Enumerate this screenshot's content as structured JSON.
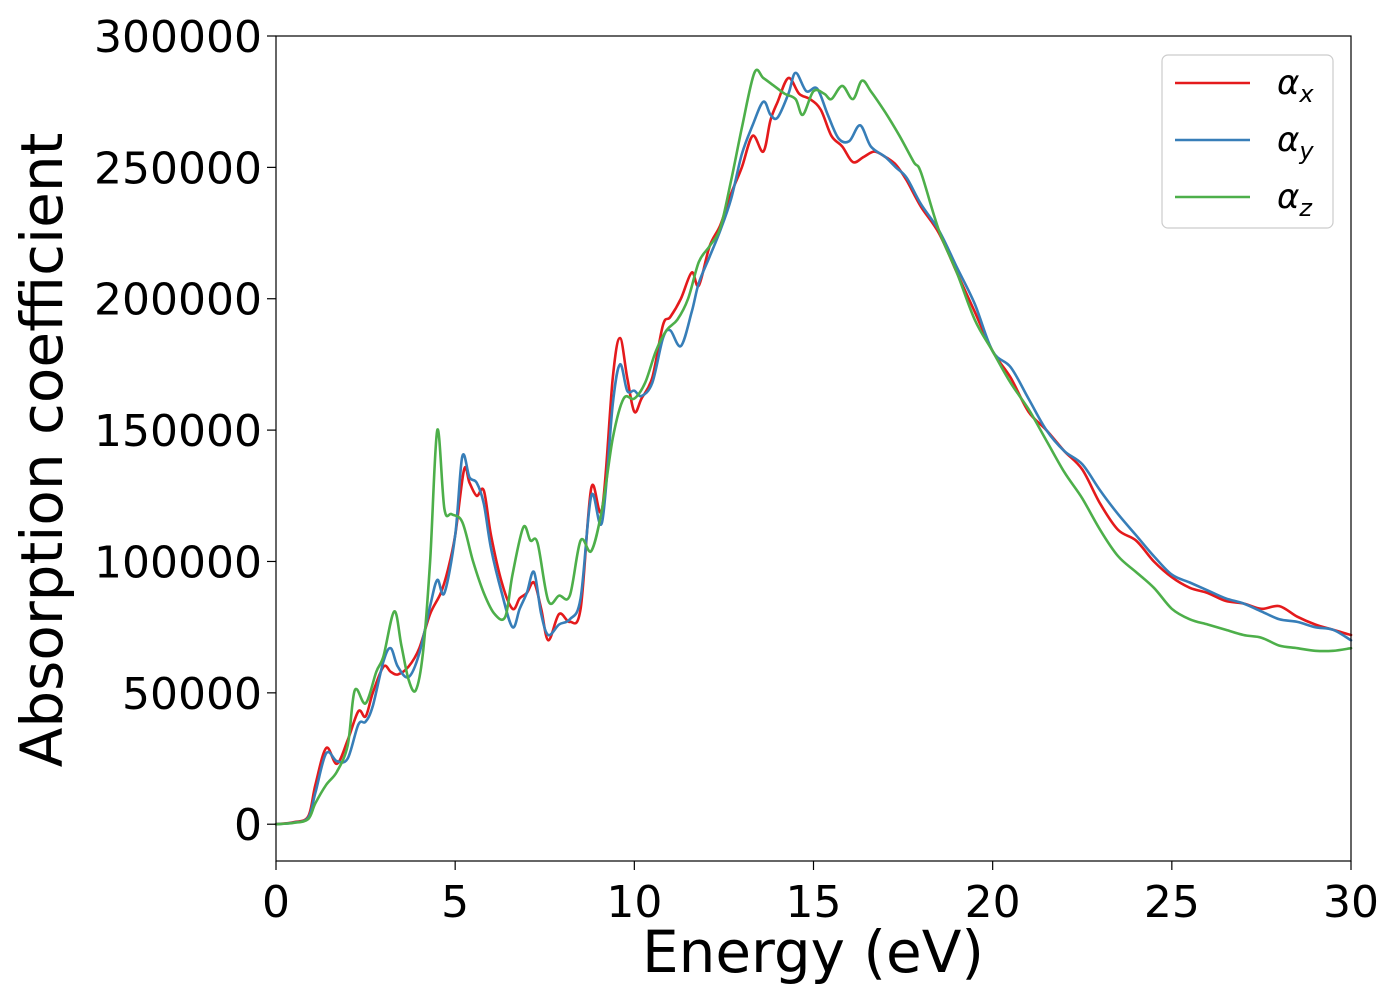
{
  "chart_data": {
    "type": "line",
    "xlabel": "Energy (eV)",
    "ylabel": "Absorption coefficient",
    "xlim": [
      0,
      30
    ],
    "ylim": [
      -14000,
      300000
    ],
    "xticks": [
      0,
      5,
      10,
      15,
      20,
      25,
      30
    ],
    "xtick_labels": [
      "0",
      "5",
      "10",
      "15",
      "20",
      "25",
      "30"
    ],
    "yticks": [
      0,
      50000,
      100000,
      150000,
      200000,
      250000,
      300000
    ],
    "ytick_labels": [
      "0",
      "50000",
      "100000",
      "150000",
      "200000",
      "250000",
      "300000"
    ],
    "grid": false,
    "legend_position": "top-right",
    "series": [
      {
        "name": "α",
        "subscript": "x",
        "color": "#e41a1c",
        "x": [
          0,
          0.5,
          0.9,
          1.1,
          1.4,
          1.7,
          2.0,
          2.3,
          2.5,
          2.7,
          3.0,
          3.2,
          3.4,
          3.7,
          4.0,
          4.3,
          4.6,
          4.8,
          5.0,
          5.25,
          5.4,
          5.6,
          5.8,
          6.0,
          6.3,
          6.6,
          6.8,
          7.0,
          7.2,
          7.4,
          7.6,
          7.9,
          8.2,
          8.5,
          8.8,
          9.1,
          9.4,
          9.6,
          9.8,
          10.0,
          10.2,
          10.5,
          10.8,
          11.0,
          11.3,
          11.6,
          11.8,
          12.1,
          12.4,
          12.7,
          13.0,
          13.3,
          13.6,
          13.8,
          14.0,
          14.3,
          14.6,
          14.9,
          15.2,
          15.5,
          15.8,
          16.1,
          16.4,
          16.7,
          17.0,
          17.3,
          17.6,
          18.0,
          18.5,
          19.0,
          19.5,
          20.0,
          20.5,
          21.0,
          21.5,
          22.0,
          22.5,
          23.0,
          23.5,
          24.0,
          24.5,
          25.0,
          25.5,
          26.0,
          26.5,
          27.0,
          27.5,
          28.0,
          28.5,
          29.0,
          29.5,
          30.0
        ],
        "y": [
          0,
          800,
          3000,
          15000,
          29000,
          23000,
          32000,
          43000,
          41000,
          50000,
          60000,
          58000,
          57000,
          60000,
          67000,
          80000,
          88000,
          97000,
          110000,
          135000,
          130000,
          125000,
          127000,
          110000,
          92000,
          82000,
          86000,
          88000,
          92000,
          82000,
          70000,
          80000,
          77000,
          82000,
          128000,
          120000,
          170000,
          185000,
          170000,
          157000,
          162000,
          170000,
          190000,
          193000,
          200000,
          210000,
          205000,
          220000,
          228000,
          240000,
          250000,
          262000,
          256000,
          268000,
          275000,
          284000,
          278000,
          276000,
          272000,
          262000,
          258000,
          252000,
          254000,
          256000,
          254000,
          251000,
          245000,
          235000,
          225000,
          210000,
          195000,
          180000,
          170000,
          157000,
          150000,
          142000,
          135000,
          122000,
          112000,
          108000,
          100000,
          94000,
          90000,
          88000,
          85000,
          84000,
          82000,
          83000,
          79000,
          76000,
          74000,
          72000
        ]
      },
      {
        "name": "α",
        "subscript": "y",
        "color": "#377eb8",
        "x": [
          0,
          0.5,
          0.9,
          1.1,
          1.4,
          1.7,
          2.0,
          2.3,
          2.5,
          2.7,
          3.0,
          3.2,
          3.4,
          3.7,
          4.0,
          4.3,
          4.5,
          4.7,
          5.0,
          5.2,
          5.4,
          5.6,
          5.8,
          6.0,
          6.3,
          6.6,
          6.8,
          7.0,
          7.2,
          7.4,
          7.6,
          7.9,
          8.2,
          8.5,
          8.8,
          9.1,
          9.4,
          9.6,
          9.8,
          10.0,
          10.2,
          10.5,
          10.8,
          11.0,
          11.3,
          11.6,
          11.8,
          12.1,
          12.4,
          12.7,
          13.0,
          13.3,
          13.6,
          13.8,
          14.0,
          14.3,
          14.5,
          14.8,
          15.1,
          15.4,
          15.7,
          16.0,
          16.3,
          16.6,
          17.0,
          17.3,
          17.6,
          18.0,
          18.5,
          19.0,
          19.5,
          20.0,
          20.5,
          21.0,
          21.5,
          22.0,
          22.5,
          23.0,
          23.5,
          24.0,
          24.5,
          25.0,
          25.5,
          26.0,
          26.5,
          27.0,
          27.5,
          28.0,
          28.5,
          29.0,
          29.5,
          30.0
        ],
        "y": [
          0,
          600,
          2500,
          12000,
          27000,
          24000,
          25000,
          38000,
          39000,
          45000,
          62000,
          67000,
          60000,
          56000,
          65000,
          83000,
          93000,
          88000,
          110000,
          140000,
          132000,
          130000,
          122000,
          105000,
          88000,
          75000,
          82000,
          88000,
          96000,
          80000,
          72000,
          76000,
          78000,
          86000,
          125000,
          115000,
          160000,
          175000,
          165000,
          165000,
          163000,
          168000,
          185000,
          188000,
          182000,
          195000,
          206000,
          216000,
          226000,
          238000,
          255000,
          266000,
          275000,
          270000,
          269000,
          278000,
          286000,
          279000,
          280000,
          270000,
          261000,
          260000,
          266000,
          258000,
          254000,
          250000,
          246000,
          236000,
          226000,
          212000,
          198000,
          180000,
          174000,
          162000,
          150000,
          142000,
          137000,
          127000,
          118000,
          110000,
          102000,
          95000,
          92000,
          89000,
          86000,
          84000,
          81000,
          78000,
          77000,
          75000,
          74000,
          70000
        ]
      },
      {
        "name": "α",
        "subscript": "z",
        "color": "#4daf4a",
        "x": [
          0,
          0.5,
          0.9,
          1.1,
          1.4,
          1.7,
          2.0,
          2.2,
          2.5,
          2.8,
          3.0,
          3.3,
          3.5,
          3.7,
          3.9,
          4.1,
          4.3,
          4.5,
          4.7,
          4.9,
          5.2,
          5.5,
          5.8,
          6.1,
          6.4,
          6.6,
          6.9,
          7.1,
          7.3,
          7.6,
          7.9,
          8.2,
          8.5,
          8.8,
          9.1,
          9.4,
          9.7,
          10.0,
          10.3,
          10.6,
          10.9,
          11.2,
          11.5,
          11.8,
          12.1,
          12.4,
          12.7,
          13.0,
          13.35,
          13.6,
          13.9,
          14.2,
          14.5,
          14.7,
          15.0,
          15.3,
          15.5,
          15.8,
          16.1,
          16.35,
          16.6,
          17.0,
          17.4,
          17.8,
          18.0,
          18.5,
          19.0,
          19.5,
          20.0,
          20.5,
          21.0,
          21.5,
          22.0,
          22.5,
          23.0,
          23.5,
          24.0,
          24.5,
          25.0,
          25.5,
          26.0,
          26.5,
          27.0,
          27.5,
          28.0,
          28.5,
          29.0,
          29.5,
          30.0
        ],
        "y": [
          0,
          500,
          2000,
          8000,
          15000,
          20000,
          30000,
          51000,
          46000,
          58000,
          64000,
          81000,
          68000,
          55000,
          51000,
          65000,
          100000,
          150000,
          120000,
          118000,
          115000,
          100000,
          88000,
          80000,
          79000,
          95000,
          113000,
          108000,
          107000,
          85000,
          87000,
          87000,
          108000,
          104000,
          120000,
          147000,
          162000,
          162000,
          168000,
          180000,
          188000,
          192000,
          200000,
          214000,
          220000,
          227000,
          245000,
          265000,
          286000,
          284000,
          281000,
          278000,
          276000,
          270000,
          279000,
          278000,
          276000,
          281000,
          276000,
          283000,
          279000,
          271000,
          262000,
          252000,
          248000,
          226000,
          210000,
          192000,
          180000,
          168000,
          158000,
          146000,
          134000,
          124000,
          112000,
          102000,
          96000,
          90000,
          82000,
          78000,
          76000,
          74000,
          72000,
          71000,
          68000,
          67000,
          66000,
          66000,
          67000
        ]
      }
    ]
  }
}
